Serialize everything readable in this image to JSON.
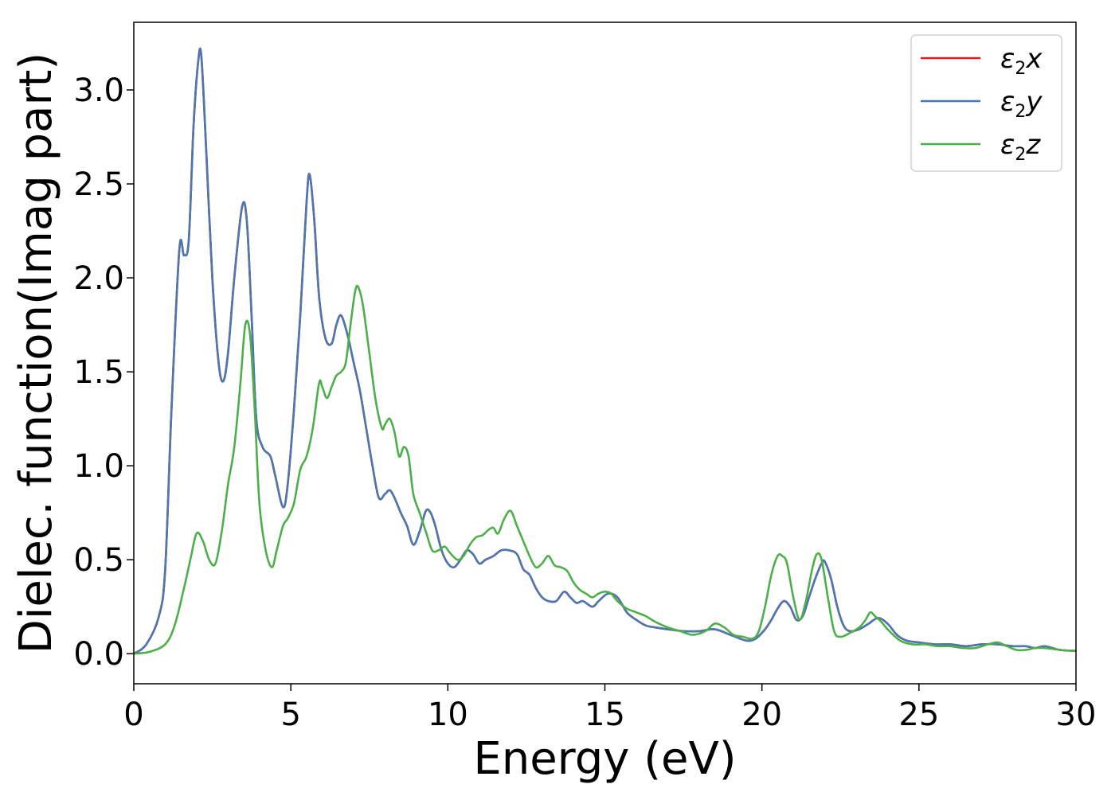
{
  "chart_data": {
    "type": "line",
    "title": "",
    "xlabel": "Energy (eV)",
    "ylabel": "Dielec. function(Imag part)",
    "xlim": [
      0,
      30
    ],
    "ylim": [
      -0.16,
      3.36
    ],
    "xticks": [
      0,
      5,
      10,
      15,
      20,
      25,
      30
    ],
    "xtick_labels": [
      "0",
      "5",
      "10",
      "15",
      "20",
      "25",
      "30"
    ],
    "yticks": [
      0.0,
      0.5,
      1.0,
      1.5,
      2.0,
      2.5,
      3.0
    ],
    "ytick_labels": [
      "0.0",
      "0.5",
      "1.0",
      "1.5",
      "2.0",
      "2.5",
      "3.0"
    ],
    "grid": false,
    "legend_position": "top-right",
    "series": [
      {
        "name": "ε₂x",
        "legend_base": "ε",
        "legend_sub": "2",
        "legend_suffix": "x",
        "color": "#e41a1c",
        "x": [
          0,
          0.4,
          0.8,
          1.0,
          1.2,
          1.45,
          1.6,
          1.75,
          1.9,
          2.05,
          2.15,
          2.3,
          2.5,
          2.7,
          2.85,
          3.0,
          3.2,
          3.45,
          3.6,
          3.75,
          3.9,
          4.1,
          4.35,
          4.5,
          4.75,
          4.9,
          5.1,
          5.3,
          5.5,
          5.6,
          5.75,
          5.9,
          6.1,
          6.3,
          6.45,
          6.6,
          6.8,
          7.0,
          7.2,
          7.4,
          7.6,
          7.8,
          8.0,
          8.15,
          8.3,
          8.5,
          8.7,
          8.9,
          9.1,
          9.3,
          9.45,
          9.6,
          9.8,
          10.0,
          10.2,
          10.4,
          10.6,
          10.8,
          11.0,
          11.2,
          11.45,
          11.7,
          11.95,
          12.2,
          12.4,
          12.6,
          12.8,
          13.0,
          13.2,
          13.45,
          13.7,
          13.9,
          14.1,
          14.3,
          14.6,
          14.8,
          15.1,
          15.4,
          15.7,
          16.0,
          16.3,
          16.6,
          17.0,
          17.5,
          18.0,
          18.5,
          19.0,
          19.5,
          19.8,
          20.1,
          20.3,
          20.5,
          20.7,
          20.9,
          21.1,
          21.3,
          21.5,
          21.7,
          21.9,
          22.0,
          22.2,
          22.4,
          22.6,
          22.8,
          23.1,
          23.4,
          23.7,
          24.0,
          24.3,
          24.6,
          25.0,
          25.5,
          26.0,
          26.5,
          27.0,
          27.5,
          28.0,
          28.4,
          28.7,
          29.0,
          29.5,
          30.0
        ],
        "y": [
          0.0,
          0.05,
          0.2,
          0.45,
          1.3,
          2.15,
          2.12,
          2.2,
          2.8,
          3.15,
          3.18,
          2.7,
          2.0,
          1.55,
          1.45,
          1.6,
          2.0,
          2.38,
          2.3,
          1.8,
          1.25,
          1.1,
          1.05,
          0.95,
          0.78,
          0.9,
          1.3,
          1.8,
          2.4,
          2.55,
          2.3,
          1.9,
          1.68,
          1.65,
          1.75,
          1.8,
          1.7,
          1.55,
          1.4,
          1.2,
          1.0,
          0.83,
          0.85,
          0.87,
          0.83,
          0.75,
          0.68,
          0.58,
          0.65,
          0.76,
          0.75,
          0.68,
          0.55,
          0.48,
          0.46,
          0.5,
          0.55,
          0.53,
          0.48,
          0.5,
          0.52,
          0.55,
          0.55,
          0.53,
          0.45,
          0.42,
          0.35,
          0.3,
          0.28,
          0.28,
          0.33,
          0.3,
          0.27,
          0.28,
          0.25,
          0.28,
          0.32,
          0.3,
          0.22,
          0.18,
          0.15,
          0.14,
          0.13,
          0.12,
          0.12,
          0.13,
          0.1,
          0.07,
          0.08,
          0.13,
          0.18,
          0.24,
          0.28,
          0.25,
          0.18,
          0.2,
          0.3,
          0.4,
          0.48,
          0.49,
          0.4,
          0.25,
          0.15,
          0.12,
          0.13,
          0.16,
          0.19,
          0.16,
          0.1,
          0.07,
          0.06,
          0.05,
          0.05,
          0.04,
          0.05,
          0.05,
          0.04,
          0.04,
          0.03,
          0.04,
          0.02,
          0.015
        ]
      },
      {
        "name": "ε₂y",
        "legend_base": "ε",
        "legend_sub": "2",
        "legend_suffix": "y",
        "color": "#4a78b0",
        "x": [
          0,
          0.4,
          0.8,
          1.0,
          1.2,
          1.45,
          1.6,
          1.75,
          1.9,
          2.05,
          2.15,
          2.3,
          2.5,
          2.7,
          2.85,
          3.0,
          3.2,
          3.45,
          3.6,
          3.75,
          3.9,
          4.1,
          4.35,
          4.5,
          4.75,
          4.9,
          5.1,
          5.3,
          5.5,
          5.6,
          5.75,
          5.9,
          6.1,
          6.3,
          6.45,
          6.6,
          6.8,
          7.0,
          7.2,
          7.4,
          7.6,
          7.8,
          8.0,
          8.15,
          8.3,
          8.5,
          8.7,
          8.9,
          9.1,
          9.3,
          9.45,
          9.6,
          9.8,
          10.0,
          10.2,
          10.4,
          10.6,
          10.8,
          11.0,
          11.2,
          11.45,
          11.7,
          11.95,
          12.2,
          12.4,
          12.6,
          12.8,
          13.0,
          13.2,
          13.45,
          13.7,
          13.9,
          14.1,
          14.3,
          14.6,
          14.8,
          15.1,
          15.4,
          15.7,
          16.0,
          16.3,
          16.6,
          17.0,
          17.5,
          18.0,
          18.5,
          19.0,
          19.5,
          19.8,
          20.1,
          20.3,
          20.5,
          20.7,
          20.9,
          21.1,
          21.3,
          21.5,
          21.7,
          21.9,
          22.0,
          22.2,
          22.4,
          22.6,
          22.8,
          23.1,
          23.4,
          23.7,
          24.0,
          24.3,
          24.6,
          25.0,
          25.5,
          26.0,
          26.5,
          27.0,
          27.5,
          28.0,
          28.4,
          28.7,
          29.0,
          29.5,
          30.0
        ],
        "y": [
          0.0,
          0.05,
          0.2,
          0.45,
          1.3,
          2.15,
          2.12,
          2.2,
          2.8,
          3.15,
          3.18,
          2.7,
          2.0,
          1.55,
          1.45,
          1.6,
          2.0,
          2.38,
          2.3,
          1.8,
          1.25,
          1.1,
          1.05,
          0.95,
          0.78,
          0.9,
          1.3,
          1.8,
          2.4,
          2.55,
          2.3,
          1.9,
          1.68,
          1.65,
          1.75,
          1.8,
          1.7,
          1.55,
          1.4,
          1.2,
          1.0,
          0.83,
          0.85,
          0.87,
          0.83,
          0.75,
          0.68,
          0.58,
          0.65,
          0.76,
          0.75,
          0.68,
          0.55,
          0.48,
          0.46,
          0.5,
          0.55,
          0.53,
          0.48,
          0.5,
          0.52,
          0.55,
          0.55,
          0.53,
          0.45,
          0.42,
          0.35,
          0.3,
          0.28,
          0.28,
          0.33,
          0.3,
          0.27,
          0.28,
          0.25,
          0.28,
          0.32,
          0.3,
          0.22,
          0.18,
          0.15,
          0.14,
          0.13,
          0.12,
          0.12,
          0.13,
          0.1,
          0.07,
          0.08,
          0.13,
          0.18,
          0.24,
          0.28,
          0.25,
          0.18,
          0.2,
          0.3,
          0.4,
          0.48,
          0.49,
          0.4,
          0.25,
          0.15,
          0.12,
          0.13,
          0.16,
          0.19,
          0.16,
          0.1,
          0.07,
          0.06,
          0.05,
          0.05,
          0.04,
          0.05,
          0.05,
          0.04,
          0.04,
          0.03,
          0.04,
          0.02,
          0.015
        ]
      },
      {
        "name": "ε₂z",
        "legend_base": "ε",
        "legend_sub": "2",
        "legend_suffix": "z",
        "color": "#4daf4a",
        "x": [
          0,
          0.5,
          1.0,
          1.3,
          1.6,
          1.8,
          2.0,
          2.2,
          2.4,
          2.6,
          2.8,
          3.0,
          3.2,
          3.4,
          3.55,
          3.7,
          3.85,
          4.0,
          4.2,
          4.4,
          4.55,
          4.75,
          4.9,
          5.1,
          5.3,
          5.5,
          5.7,
          5.9,
          6.0,
          6.15,
          6.3,
          6.45,
          6.6,
          6.75,
          6.9,
          7.05,
          7.15,
          7.3,
          7.5,
          7.7,
          7.9,
          8.0,
          8.15,
          8.3,
          8.45,
          8.6,
          8.75,
          8.9,
          9.1,
          9.3,
          9.5,
          9.7,
          9.9,
          10.05,
          10.3,
          10.5,
          10.7,
          10.9,
          11.1,
          11.3,
          11.45,
          11.6,
          11.8,
          12.0,
          12.2,
          12.4,
          12.6,
          12.8,
          13.0,
          13.2,
          13.4,
          13.6,
          13.8,
          14.0,
          14.2,
          14.4,
          14.6,
          14.8,
          15.0,
          15.2,
          15.4,
          15.7,
          16.0,
          16.3,
          16.6,
          17.0,
          17.4,
          17.8,
          18.2,
          18.5,
          18.8,
          19.1,
          19.4,
          19.7,
          19.9,
          20.1,
          20.3,
          20.5,
          20.65,
          20.8,
          21.0,
          21.2,
          21.4,
          21.6,
          21.75,
          21.9,
          22.1,
          22.3,
          22.5,
          22.8,
          23.1,
          23.3,
          23.45,
          23.6,
          23.8,
          24.0,
          24.4,
          24.8,
          25.2,
          25.6,
          26.0,
          26.4,
          26.8,
          27.2,
          27.5,
          27.8,
          28.1,
          28.4,
          28.7,
          29.0,
          29.5,
          30.0
        ],
        "y": [
          0.0,
          0.01,
          0.05,
          0.15,
          0.35,
          0.5,
          0.64,
          0.6,
          0.5,
          0.48,
          0.65,
          0.9,
          1.1,
          1.45,
          1.75,
          1.7,
          1.3,
          0.8,
          0.55,
          0.46,
          0.55,
          0.68,
          0.72,
          0.8,
          0.98,
          1.05,
          1.2,
          1.44,
          1.42,
          1.36,
          1.42,
          1.48,
          1.5,
          1.55,
          1.75,
          1.93,
          1.95,
          1.85,
          1.6,
          1.35,
          1.2,
          1.22,
          1.25,
          1.18,
          1.05,
          1.1,
          1.05,
          0.85,
          0.75,
          0.65,
          0.55,
          0.55,
          0.57,
          0.54,
          0.5,
          0.52,
          0.58,
          0.62,
          0.63,
          0.66,
          0.67,
          0.64,
          0.72,
          0.76,
          0.68,
          0.6,
          0.52,
          0.46,
          0.48,
          0.52,
          0.47,
          0.46,
          0.44,
          0.38,
          0.34,
          0.32,
          0.3,
          0.32,
          0.33,
          0.32,
          0.28,
          0.24,
          0.22,
          0.2,
          0.17,
          0.14,
          0.12,
          0.1,
          0.12,
          0.16,
          0.14,
          0.1,
          0.09,
          0.08,
          0.12,
          0.25,
          0.42,
          0.52,
          0.52,
          0.48,
          0.3,
          0.18,
          0.28,
          0.45,
          0.53,
          0.5,
          0.3,
          0.12,
          0.09,
          0.11,
          0.14,
          0.18,
          0.22,
          0.2,
          0.17,
          0.13,
          0.07,
          0.05,
          0.05,
          0.04,
          0.04,
          0.03,
          0.03,
          0.05,
          0.06,
          0.04,
          0.02,
          0.02,
          0.03,
          0.03,
          0.02,
          0.015
        ]
      }
    ]
  }
}
